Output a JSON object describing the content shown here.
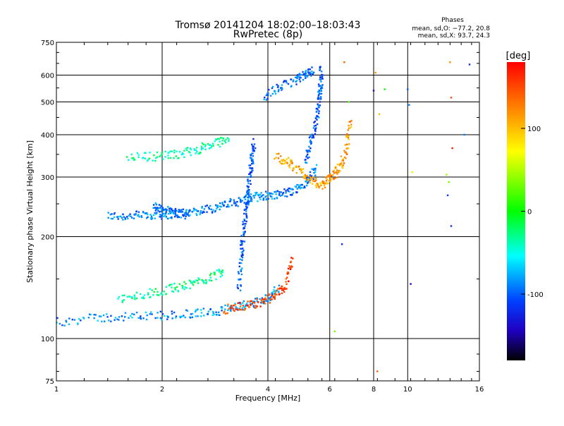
{
  "chart_data": {
    "type": "scatter",
    "title": "Tromsø 20141204 18:02:00–18:03:43",
    "subtitle": "RwPretec (8p)",
    "xlabel": "Frequency [MHz]",
    "ylabel": "Stationary phase Virtual Height [km]",
    "x_scale": "log",
    "y_scale": "log",
    "xlim": [
      1,
      16
    ],
    "ylim": [
      75,
      750
    ],
    "x_ticks": [
      {
        "value": 1,
        "label": "1"
      },
      {
        "value": 2,
        "label": "2"
      },
      {
        "value": 4,
        "label": "4"
      },
      {
        "value": 6,
        "label": "6"
      },
      {
        "value": 8,
        "label": "8"
      },
      {
        "value": 10,
        "label": "10"
      },
      {
        "value": 16,
        "label": "16"
      }
    ],
    "y_ticks": [
      {
        "value": 75,
        "label": "75"
      },
      {
        "value": 100,
        "label": "100"
      },
      {
        "value": 200,
        "label": "200"
      },
      {
        "value": 300,
        "label": "300"
      },
      {
        "value": 400,
        "label": "400"
      },
      {
        "value": 500,
        "label": "500"
      },
      {
        "value": 600,
        "label": "600"
      },
      {
        "value": 750,
        "label": "750"
      }
    ],
    "grid": true,
    "legend": {
      "title": "Phases",
      "lines": [
        "mean, sd,O: −77.2, 20.8",
        "mean, sd,X:  93.7, 24.3"
      ]
    },
    "colorbar": {
      "label": "[deg]",
      "range": [
        -180,
        180
      ],
      "ticks": [
        {
          "value": 100,
          "label": "100"
        },
        {
          "value": 0,
          "label": "0"
        },
        {
          "value": -100,
          "label": "-100"
        }
      ]
    },
    "series": [
      {
        "mode": "trace",
        "f": [
          1.4,
          1.6,
          1.8,
          2.0,
          2.2,
          2.5,
          2.8,
          3.1,
          3.4,
          3.7,
          4.0,
          4.4,
          4.8,
          5.2,
          5.5
        ],
        "h": [
          230,
          230,
          232,
          232,
          234,
          238,
          243,
          250,
          256,
          262,
          265,
          268,
          275,
          290,
          320
        ],
        "phase": -90
      },
      {
        "mode": "trace",
        "f": [
          5.1,
          5.3,
          5.5,
          5.6,
          5.65,
          5.7
        ],
        "h": [
          330,
          380,
          440,
          500,
          560,
          630
        ],
        "phase": -100
      },
      {
        "mode": "trace",
        "f": [
          3.9,
          4.3,
          4.8,
          5.1,
          5.4
        ],
        "h": [
          520,
          550,
          580,
          600,
          620
        ],
        "phase": -95
      },
      {
        "mode": "trace",
        "f": [
          1.6,
          1.9,
          2.2,
          2.5,
          2.8,
          3.1
        ],
        "h": [
          345,
          345,
          350,
          360,
          375,
          390
        ],
        "phase": -35
      },
      {
        "mode": "trace",
        "f": [
          4.2,
          4.6,
          5.0,
          5.4,
          5.8
        ],
        "h": [
          345,
          330,
          310,
          290,
          282
        ],
        "phase": 110
      },
      {
        "mode": "trace",
        "f": [
          5.8,
          6.1,
          6.4,
          6.7,
          6.9
        ],
        "h": [
          290,
          300,
          320,
          360,
          440
        ],
        "phase": 115
      },
      {
        "mode": "trace",
        "f": [
          3.3,
          3.35,
          3.4,
          3.45,
          3.5,
          3.55,
          3.6,
          3.65
        ],
        "h": [
          140,
          170,
          200,
          230,
          260,
          300,
          340,
          380
        ],
        "phase": -100
      },
      {
        "mode": "trace",
        "f": [
          1.0,
          1.3,
          1.6,
          2.0,
          2.4,
          2.8,
          3.2,
          3.6,
          4.0,
          4.3
        ],
        "h": [
          112,
          115,
          116,
          117,
          118,
          120,
          123,
          127,
          132,
          140
        ],
        "phase": -85
      },
      {
        "mode": "trace",
        "f": [
          3.0,
          3.4,
          3.8,
          4.2,
          4.5,
          4.7
        ],
        "h": [
          122,
          124,
          128,
          133,
          145,
          175
        ],
        "phase": 150
      },
      {
        "mode": "trace",
        "f": [
          1.5,
          1.8,
          2.1,
          2.4,
          2.7,
          3.0
        ],
        "h": [
          130,
          135,
          140,
          145,
          150,
          160
        ],
        "phase": -30
      },
      {
        "mode": "trace",
        "f": [
          1.9,
          2.0,
          2.2,
          2.4
        ],
        "h": [
          250,
          240,
          235,
          232
        ],
        "phase": -95
      },
      {
        "mode": "points",
        "f": [
          6.6,
          6.8,
          8.1,
          8.3,
          8.6,
          10.0,
          10.1,
          10.3,
          13.2,
          13.3,
          13.4,
          14.5,
          15.0,
          12.9,
          13.1,
          13.0,
          6.2,
          6.5,
          8.0,
          8.2,
          13.3,
          10.2
        ],
        "h": [
          655,
          500,
          610,
          460,
          545,
          545,
          490,
          310,
          655,
          515,
          365,
          400,
          645,
          305,
          290,
          265,
          105,
          190,
          540,
          80,
          215,
          145
        ],
        "phase": [
          140,
          20,
          120,
          100,
          0,
          -100,
          -90,
          60,
          120,
          150,
          170,
          -90,
          -120,
          40,
          30,
          -110,
          30,
          -120,
          -140,
          140,
          -120,
          -140
        ]
      }
    ]
  }
}
